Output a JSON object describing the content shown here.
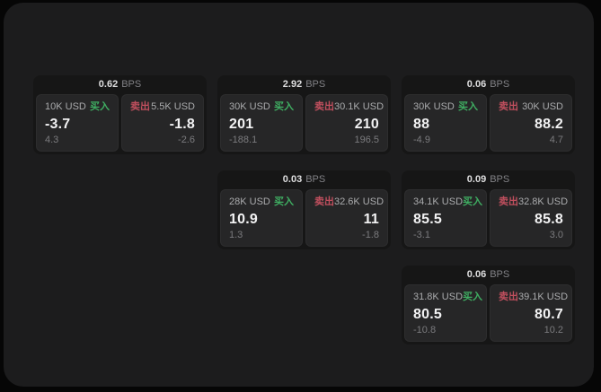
{
  "colors": {
    "page_bg": "#060606",
    "surface_bg": "#1c1c1d",
    "card_bg": "#161616",
    "panel_bg": "#262627",
    "buy": "#3fae62",
    "sell": "#c04f5e"
  },
  "labels": {
    "buy": "买入",
    "sell": "卖出",
    "bps": "BPS"
  },
  "cards": [
    {
      "bps": "0.62",
      "buy": {
        "amount": "10K USD",
        "value": "-3.7",
        "delta": "4.3"
      },
      "sell": {
        "amount": "5.5K USD",
        "value": "-1.8",
        "delta": "-2.6"
      }
    },
    {
      "bps": "2.92",
      "buy": {
        "amount": "30K USD",
        "value": "201",
        "delta": "-188.1"
      },
      "sell": {
        "amount": "30.1K USD",
        "value": "210",
        "delta": "196.5"
      }
    },
    {
      "bps": "0.06",
      "buy": {
        "amount": "30K USD",
        "value": "88",
        "delta": "-4.9"
      },
      "sell": {
        "amount": "30K USD",
        "value": "88.2",
        "delta": "4.7"
      }
    },
    {
      "bps": "0.03",
      "buy": {
        "amount": "28K USD",
        "value": "10.9",
        "delta": "1.3"
      },
      "sell": {
        "amount": "32.6K USD",
        "value": "11",
        "delta": "-1.8"
      }
    },
    {
      "bps": "0.09",
      "buy": {
        "amount": "34.1K USD",
        "value": "85.5",
        "delta": "-3.1"
      },
      "sell": {
        "amount": "32.8K USD",
        "value": "85.8",
        "delta": "3.0"
      }
    },
    {
      "bps": "0.06",
      "buy": {
        "amount": "31.8K USD",
        "value": "80.5",
        "delta": "-10.8"
      },
      "sell": {
        "amount": "39.1K USD",
        "value": "80.7",
        "delta": "10.2"
      }
    }
  ]
}
